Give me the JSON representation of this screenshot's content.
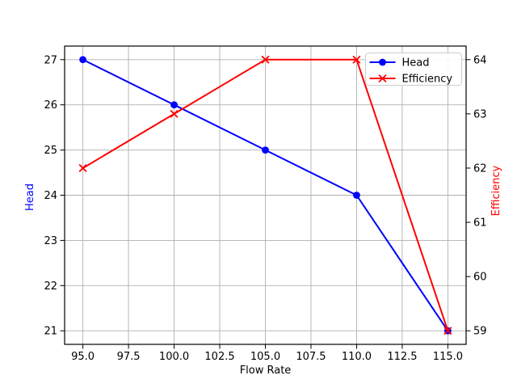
{
  "figure": {
    "background": "#ffffff"
  },
  "chart_data": {
    "type": "line",
    "title": "",
    "xlabel": "Flow Rate",
    "ylabel_left": "Head",
    "ylabel_right": "Efficiency",
    "x": [
      95,
      100,
      105,
      110,
      115
    ],
    "series": [
      {
        "name": "Head",
        "axis": "left",
        "color": "#0000ff",
        "marker": "circle",
        "values": [
          27,
          26,
          25,
          24,
          21
        ]
      },
      {
        "name": "Efficiency",
        "axis": "right",
        "color": "#ff0000",
        "marker": "x",
        "values": [
          62,
          63,
          64,
          64,
          59
        ]
      }
    ],
    "xlim": [
      94,
      116
    ],
    "ylim_left": [
      20.7,
      27.3
    ],
    "ylim_right": [
      58.75,
      64.25
    ],
    "x_ticks": {
      "values": [
        95,
        97.5,
        100,
        102.5,
        105,
        107.5,
        110,
        112.5,
        115
      ],
      "labels": [
        "95.0",
        "97.5",
        "100.0",
        "102.5",
        "105.0",
        "107.5",
        "110.0",
        "112.5",
        "115.0"
      ]
    },
    "y_ticks_left": {
      "values": [
        21,
        22,
        23,
        24,
        25,
        26,
        27
      ],
      "labels": [
        "21",
        "22",
        "23",
        "24",
        "25",
        "26",
        "27"
      ]
    },
    "y_ticks_right": {
      "values": [
        59,
        60,
        61,
        62,
        63,
        64
      ],
      "labels": [
        "59",
        "60",
        "61",
        "62",
        "63",
        "64"
      ]
    },
    "grid": true,
    "grid_color": "#b0b0b0",
    "spine_color": "#000000",
    "tick_label_color": "#000000",
    "legend_position": "upper right",
    "legend_entries": [
      "Head",
      "Efficiency"
    ]
  }
}
